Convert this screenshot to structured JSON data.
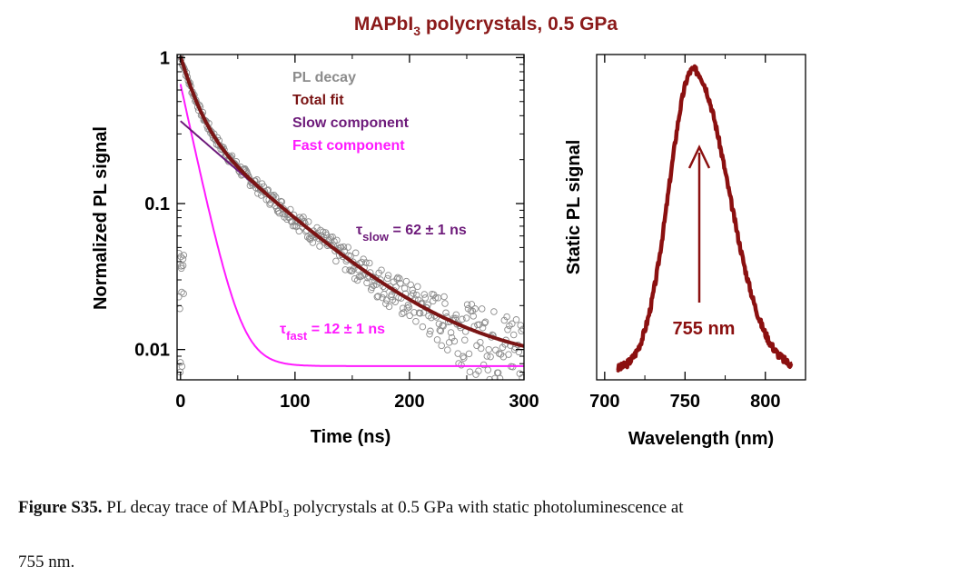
{
  "colors": {
    "title": "#8b1a1a",
    "raw": "#8c8c8c",
    "total_fit": "#7a1414",
    "slow": "#6d1a7a",
    "fast": "#ff1aff",
    "static": "#8b1010",
    "axis": "#000000"
  },
  "figure": {
    "title_main": "MAPbI",
    "title_sub": "3",
    "title_rest": " polycrystals, 0.5 GPa"
  },
  "chart_data": [
    {
      "type": "scatter",
      "yscale": "log",
      "xlabel": "Time (ns)",
      "ylabel": "Normalized PL signal",
      "xlim": [
        -3,
        300
      ],
      "ylim": [
        0.0062,
        1.05
      ],
      "xticks": [
        "0",
        "100",
        "200",
        "300"
      ],
      "yticks": [
        "1",
        "0.1",
        "0.01"
      ],
      "legend_position": "top-right",
      "legend": {
        "raw": "PL decay",
        "total": "Total fit",
        "slow": "Slow component",
        "fast": "Fast component"
      },
      "annotations": {
        "slow_tau": "τ",
        "slow_sub": "slow",
        "slow_value": " = 62 ± 1 ns",
        "fast_tau": "τ",
        "fast_sub": "fast",
        "fast_value": " = 12 ± 1 ns"
      },
      "series": [
        {
          "name": "PL decay",
          "style": "open-circles",
          "model": {
            "a_fast": 0.65,
            "tau_fast": 12,
            "a_slow": 0.36,
            "tau_slow": 62,
            "offset": 0.0077
          }
        },
        {
          "name": "Total fit",
          "style": "line",
          "model": {
            "a_fast": 0.65,
            "tau_fast": 12,
            "a_slow": 0.36,
            "tau_slow": 62,
            "offset": 0.0077
          }
        },
        {
          "name": "Slow component",
          "style": "line",
          "model": {
            "a_slow": 0.36,
            "tau_slow": 62,
            "offset": 0.0077
          }
        },
        {
          "name": "Fast component",
          "style": "line",
          "model": {
            "a_fast": 0.65,
            "tau_fast": 12,
            "offset": 0.0077
          }
        }
      ]
    },
    {
      "type": "line",
      "xlabel": "Wavelength (nm)",
      "ylabel": "Static PL signal",
      "xlim": [
        695,
        825
      ],
      "ylim": [
        0,
        1.08
      ],
      "xticks": [
        "700",
        "750",
        "800"
      ],
      "peak_label": "755 nm",
      "peak_wavelength": 755,
      "series": [
        {
          "name": "Static PL",
          "x_range": [
            708,
            817
          ],
          "peak": 755,
          "sigma_left": 15,
          "sigma_right": 22,
          "peak_value": 1.0
        }
      ]
    }
  ],
  "caption": {
    "label": "Figure S35.",
    "text_before": " PL decay trace of MAPbI",
    "sub": "3",
    "text_after": " polycrystals at 0.5 GPa with static photoluminescence at",
    "line2": "755 nm."
  }
}
